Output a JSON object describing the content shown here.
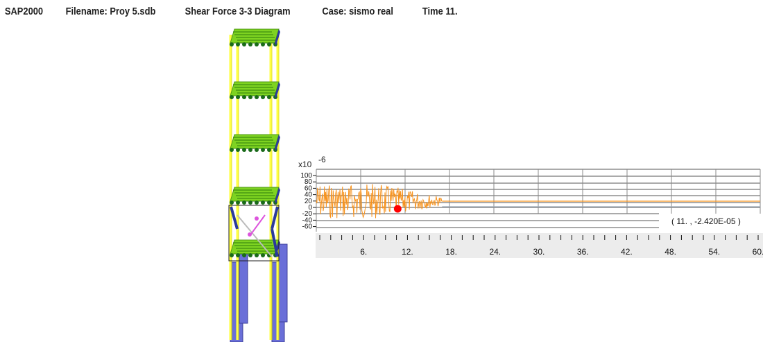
{
  "title_bar": {
    "app": "SAP2000",
    "filename": "Filename: Proy 5.sdb",
    "diagram": "Shear Force 3-3 Diagram",
    "case": "Case: sismo real",
    "time": "Time 11."
  },
  "chart_data": {
    "type": "line",
    "title": "",
    "xlabel": "",
    "ylabel": "",
    "y_multiplier_label": "x10",
    "y_multiplier_exponent": "-6",
    "y_ticks": [
      100,
      80,
      60,
      40,
      20,
      0,
      -20,
      -40,
      -60
    ],
    "y_tick_labels": [
      "100",
      "80",
      "60",
      "40",
      "20",
      "0",
      "-20",
      "-40",
      "-60"
    ],
    "x_ticks": [
      6,
      12,
      18,
      24,
      30,
      36,
      42,
      48,
      54,
      60
    ],
    "x_tick_labels": [
      "6.",
      "12.",
      "18.",
      "24.",
      "30.",
      "36.",
      "42.",
      "48.",
      "54.",
      "60."
    ],
    "xlim": [
      0,
      60
    ],
    "ylim": [
      -60,
      100
    ],
    "series": [
      {
        "color": "#f7931e",
        "x": [
          0,
          17,
          60
        ],
        "y": [
          0,
          0,
          0
        ],
        "active_window": [
          0,
          17
        ],
        "approx_amplitude": 25
      }
    ],
    "current_point": {
      "x": 11,
      "y": -2.42e-05,
      "color": "#ff0000"
    },
    "readout": "( 11. , -2.420E-05 )",
    "grid": true
  },
  "model_view": {
    "frame_color": "#ffff44",
    "slab_color": "#7ed321",
    "brace_color": "#2b3a9c",
    "wall_color": "#6a6fd8",
    "node_color": "#1a6b1a",
    "floors": 5
  }
}
